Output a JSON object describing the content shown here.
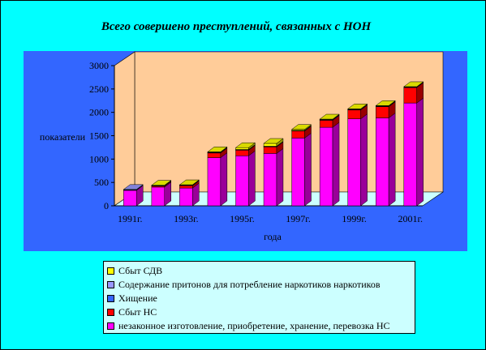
{
  "chart_data": {
    "type": "bar",
    "stacked": true,
    "three_d": true,
    "title": "Всего совершено преступлений, связанных с НОН",
    "xlabel": "года",
    "ylabel": "показатели",
    "ylim": [
      0,
      3000
    ],
    "yticks": [
      "0",
      "500",
      "1000",
      "1500",
      "2000",
      "2500",
      "3000"
    ],
    "categories": [
      "1991г.",
      "1992г.",
      "1993г.",
      "1994г.",
      "1995г.",
      "1996г.",
      "1997г.",
      "1998г.",
      "1999г.",
      "2000г.",
      "2001г."
    ],
    "shown_category_labels": [
      "1991г.",
      "1993г.",
      "1995г.",
      "1997г.",
      "1999г.",
      "2001г."
    ],
    "series": [
      {
        "name": "незаконное изготовление, приобретение, хранение, перевозка НС",
        "color": "#ff00ff",
        "values": [
          330,
          400,
          380,
          1030,
          1070,
          1120,
          1450,
          1680,
          1860,
          1880,
          2200
        ]
      },
      {
        "name": "Сбыт НС",
        "color": "#ff0000",
        "values": [
          0,
          20,
          50,
          100,
          120,
          140,
          150,
          150,
          190,
          240,
          330
        ]
      },
      {
        "name": "Хищение",
        "color": "#3366ff",
        "values": [
          10,
          10,
          10,
          10,
          10,
          10,
          10,
          10,
          10,
          10,
          10
        ]
      },
      {
        "name": "Содержание притонов для потребление наркотиков наркотиков",
        "color": "#9999ff",
        "values": [
          10,
          5,
          5,
          5,
          5,
          5,
          5,
          5,
          5,
          5,
          5
        ]
      },
      {
        "name": "Сбыт СДВ",
        "color": "#ffff00",
        "values": [
          0,
          5,
          5,
          10,
          40,
          60,
          20,
          10,
          10,
          10,
          5
        ]
      }
    ],
    "legend_order": [
      4,
      3,
      2,
      1,
      0
    ],
    "legend_position": "bottom",
    "grid": false,
    "wall_color": "#ffcc99",
    "floor_color": "#ccffff"
  }
}
